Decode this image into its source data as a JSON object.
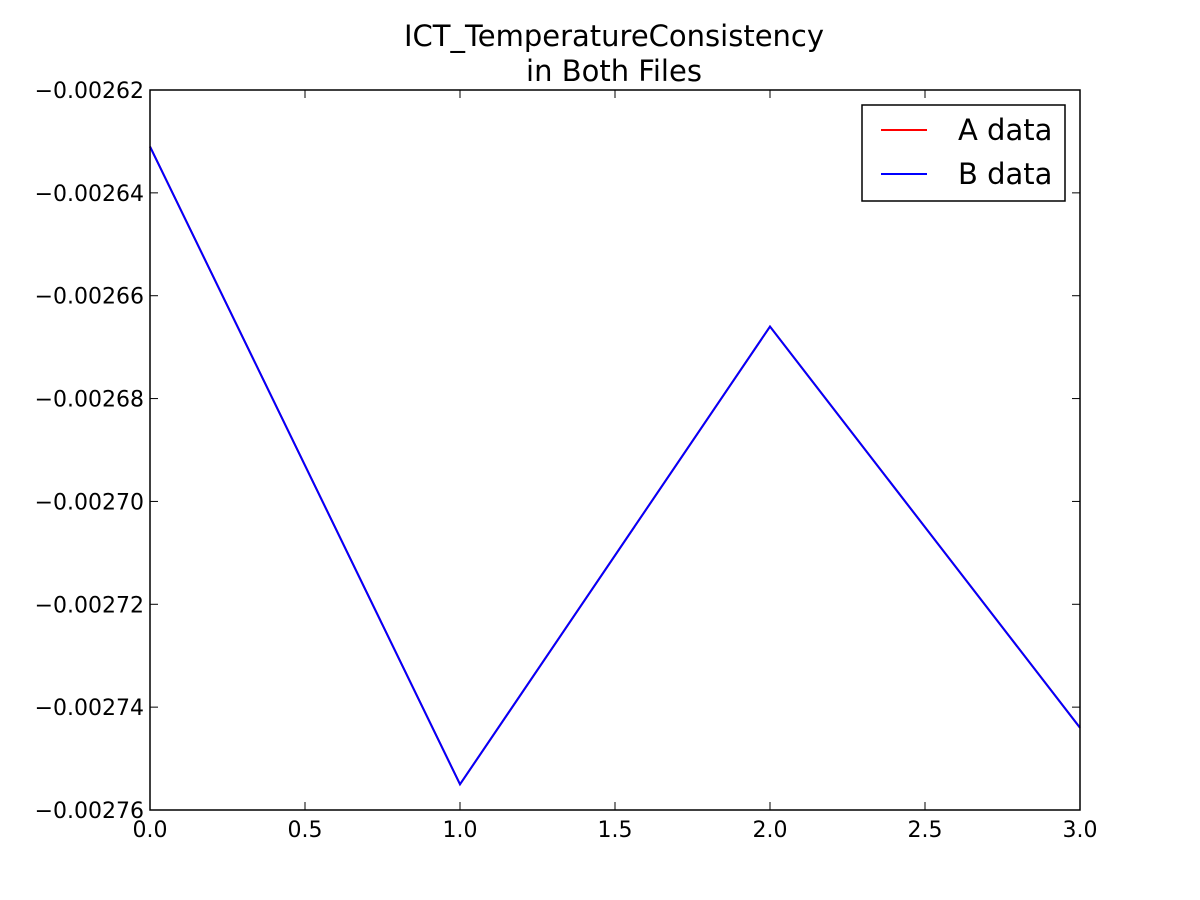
{
  "chart_data": {
    "type": "line",
    "title": "ICT_TemperatureConsistency",
    "subtitle": "in Both Files",
    "xlabel": "",
    "ylabel": "",
    "xlim": [
      0.0,
      3.0
    ],
    "ylim": [
      -0.00276,
      -0.00262
    ],
    "x_ticks": [
      "0.0",
      "0.5",
      "1.0",
      "1.5",
      "2.0",
      "2.5",
      "3.0"
    ],
    "x_tick_values": [
      0.0,
      0.5,
      1.0,
      1.5,
      2.0,
      2.5,
      3.0
    ],
    "y_ticks": [
      "−0.00262",
      "−0.00264",
      "−0.00266",
      "−0.00268",
      "−0.00270",
      "−0.00272",
      "−0.00274",
      "−0.00276"
    ],
    "y_tick_values": [
      -0.00262,
      -0.00264,
      -0.00266,
      -0.00268,
      -0.0027,
      -0.00272,
      -0.00274,
      -0.00276
    ],
    "grid": false,
    "legend_position": "top-right",
    "x": [
      0,
      1,
      2,
      3
    ],
    "series": [
      {
        "name": "A data",
        "color": "#ff0000",
        "values": [
          -0.002631,
          -0.002755,
          -0.002666,
          -0.002744
        ]
      },
      {
        "name": "B data",
        "color": "#0000ff",
        "values": [
          -0.002631,
          -0.002755,
          -0.002666,
          -0.002744
        ]
      }
    ]
  }
}
